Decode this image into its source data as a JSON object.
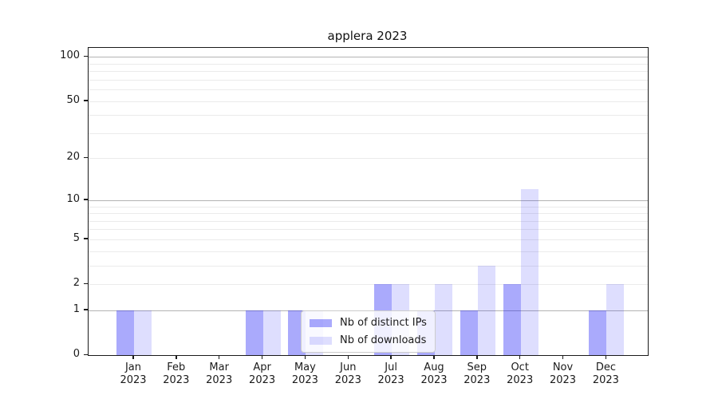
{
  "chart_data": {
    "type": "bar",
    "title": "applera 2023",
    "categories": [
      "Jan",
      "Feb",
      "Mar",
      "Apr",
      "May",
      "Jun",
      "Jul",
      "Aug",
      "Sep",
      "Oct",
      "Nov",
      "Dec"
    ],
    "x_year_label": "2023",
    "series": [
      {
        "name": "Nb of distinct IPs",
        "color": "rgba(20,20,246,0.36)",
        "values": [
          1,
          0,
          0,
          1,
          1,
          0,
          2,
          1,
          1,
          2,
          0,
          1
        ]
      },
      {
        "name": "Nb of downloads",
        "color": "rgba(20,20,246,0.14)",
        "values": [
          1,
          0,
          0,
          1,
          1,
          0,
          2,
          2,
          3,
          12,
          0,
          2
        ]
      }
    ],
    "yscale": "log1p",
    "ylim": [
      0,
      114
    ],
    "yticks": [
      0,
      1,
      2,
      5,
      10,
      20,
      50,
      100
    ],
    "yticklabels": [
      "0",
      "1",
      "2",
      "5",
      "10",
      "20",
      "50",
      "100"
    ],
    "gridlines": {
      "major": [
        1,
        10,
        100
      ],
      "minor": [
        2,
        3,
        4,
        5,
        6,
        7,
        8,
        9,
        20,
        30,
        40,
        50,
        60,
        70,
        80,
        90
      ]
    },
    "grid": true,
    "legend_position": "lower center",
    "colors": {
      "major_grid": "#b3b3b3",
      "minor_grid": "#ebebeb",
      "spine": "#1a1a1a",
      "text": "#1a1a1a"
    }
  },
  "legend": {
    "items": [
      {
        "label": "Nb of distinct IPs"
      },
      {
        "label": "Nb of downloads"
      }
    ]
  }
}
